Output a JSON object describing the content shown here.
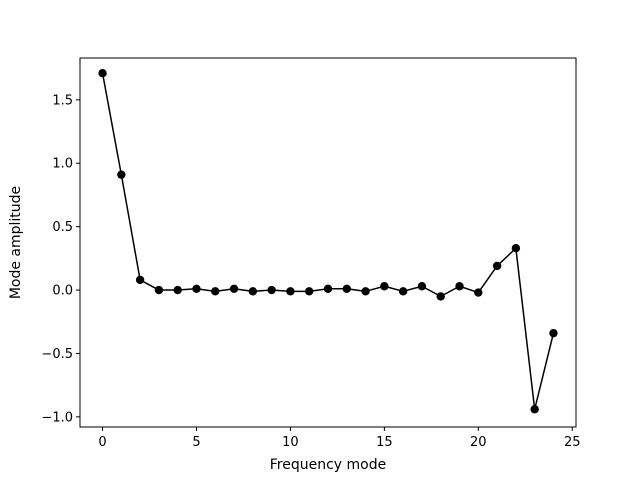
{
  "chart_data": {
    "type": "line",
    "title": "",
    "xlabel": "Frequency mode",
    "ylabel": "Mode amplitude",
    "xlim": [
      -1.2,
      25.2
    ],
    "ylim": [
      -1.08,
      1.83
    ],
    "xticks": [
      0,
      5,
      10,
      15,
      20,
      25
    ],
    "xtick_labels": [
      "0",
      "5",
      "10",
      "15",
      "20",
      "25"
    ],
    "yticks": [
      -1.0,
      -0.5,
      0.0,
      0.5,
      1.0,
      1.5
    ],
    "ytick_labels": [
      "−1.0",
      "−0.5",
      "0.0",
      "0.5",
      "1.0",
      "1.5"
    ],
    "grid": false,
    "series": [
      {
        "color": "#000000",
        "marker": "circle",
        "x": [
          0,
          1,
          2,
          3,
          4,
          5,
          6,
          7,
          8,
          9,
          10,
          11,
          12,
          13,
          14,
          15,
          16,
          17,
          18,
          19,
          20,
          21,
          22,
          23,
          24
        ],
        "y": [
          1.71,
          0.91,
          0.08,
          0.0,
          0.0,
          0.01,
          -0.01,
          0.01,
          -0.01,
          0.0,
          -0.01,
          -0.01,
          0.01,
          0.01,
          -0.01,
          0.03,
          -0.01,
          0.03,
          -0.05,
          0.03,
          -0.02,
          0.19,
          0.33,
          -0.94,
          -0.34
        ]
      }
    ]
  }
}
